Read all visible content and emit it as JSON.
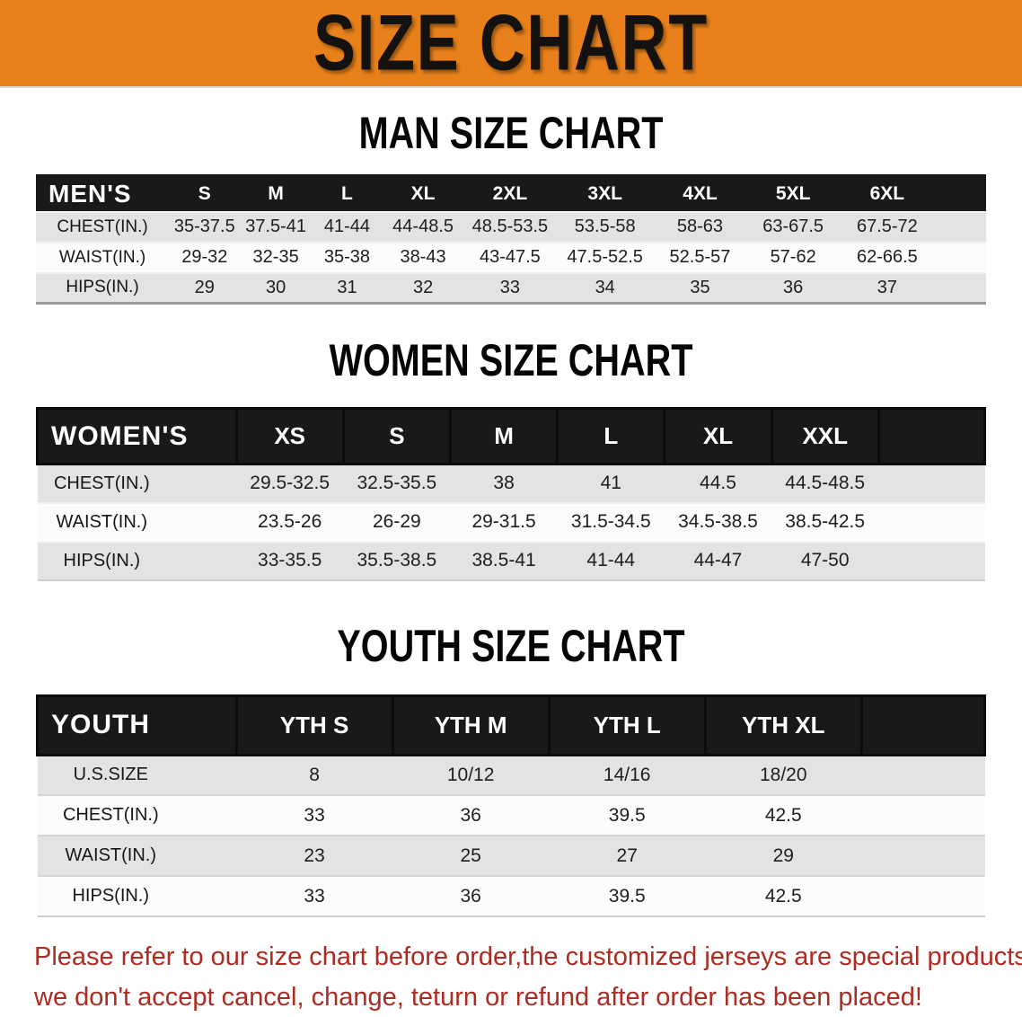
{
  "banner": {
    "title": "SIZE CHART",
    "bg_color": "#E8811B"
  },
  "sections": [
    {
      "heading": "MAN SIZE CHART",
      "corner_label": "MEN'S",
      "columns": [
        "S",
        "M",
        "L",
        "XL",
        "2XL",
        "3XL",
        "4XL",
        "5XL",
        "6XL"
      ],
      "rows": [
        {
          "label": "CHEST(IN.)",
          "values": [
            "35-37.5",
            "37.5-41",
            "41-44",
            "44-48.5",
            "48.5-53.5",
            "53.5-58",
            "58-63",
            "63-67.5",
            "67.5-72"
          ]
        },
        {
          "label": "WAIST(IN.)",
          "values": [
            "29-32",
            "32-35",
            "35-38",
            "38-43",
            "43-47.5",
            "47.5-52.5",
            "52.5-57",
            "57-62",
            "62-66.5"
          ]
        },
        {
          "label": "HIPS(IN.)",
          "values": [
            "29",
            "30",
            "31",
            "32",
            "33",
            "34",
            "35",
            "36",
            "37"
          ]
        }
      ]
    },
    {
      "heading": "WOMEN SIZE CHART",
      "corner_label": "WOMEN'S",
      "columns": [
        "XS",
        "S",
        "M",
        "L",
        "XL",
        "XXL"
      ],
      "rows": [
        {
          "label": "CHEST(IN.)",
          "values": [
            "29.5-32.5",
            "32.5-35.5",
            "38",
            "41",
            "44.5",
            "44.5-48.5"
          ]
        },
        {
          "label": "WAIST(IN.)",
          "values": [
            "23.5-26",
            "26-29",
            "29-31.5",
            "31.5-34.5",
            "34.5-38.5",
            "38.5-42.5"
          ]
        },
        {
          "label": "HIPS(IN.)",
          "values": [
            "33-35.5",
            "35.5-38.5",
            "38.5-41",
            "41-44",
            "44-47",
            "47-50"
          ]
        }
      ]
    },
    {
      "heading": "YOUTH SIZE CHART",
      "corner_label": "YOUTH",
      "columns": [
        "YTH S",
        "YTH M",
        "YTH L",
        "YTH XL"
      ],
      "rows": [
        {
          "label": "U.S.SIZE",
          "values": [
            "8",
            "10/12",
            "14/16",
            "18/20"
          ]
        },
        {
          "label": "CHEST(IN.)",
          "values": [
            "33",
            "36",
            "39.5",
            "42.5"
          ]
        },
        {
          "label": "WAIST(IN.)",
          "values": [
            "23",
            "25",
            "27",
            "29"
          ]
        },
        {
          "label": "HIPS(IN.)",
          "values": [
            "33",
            "36",
            "39.5",
            "42.5"
          ]
        }
      ]
    }
  ],
  "disclaimer": {
    "color": "#AE2B22",
    "lines": [
      "Please refer to our size chart before order,the customized jerseys are special products,",
      "we don't accept cancel, change, teturn or refund after order has been placed!"
    ]
  }
}
